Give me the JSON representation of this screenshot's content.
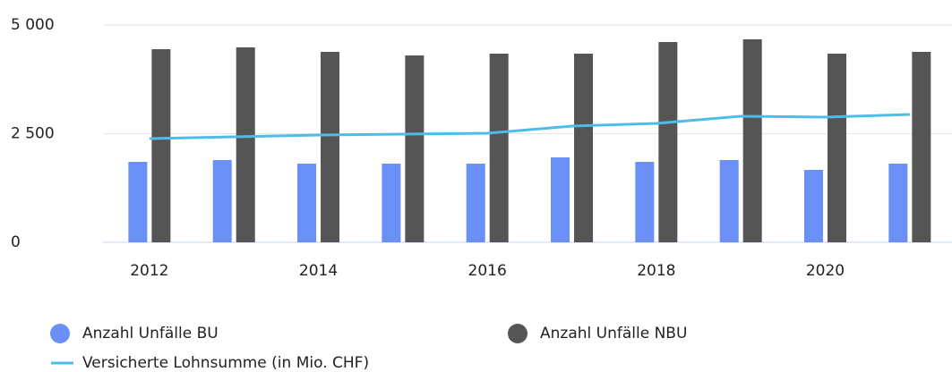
{
  "chart_data": {
    "type": "bar",
    "x": [
      2012,
      2013,
      2014,
      2015,
      2016,
      2017,
      2018,
      2019,
      2020,
      2021
    ],
    "xlim": [
      2011.45,
      2021.5
    ],
    "xticks": [
      2012,
      2014,
      2016,
      2018,
      2020
    ],
    "ylim": [
      0,
      5000
    ],
    "yticks": [
      0,
      {
        "value": 2500,
        "label": "2 500"
      },
      {
        "value": 5000,
        "label": "5 000"
      }
    ],
    "grid": true,
    "series": [
      {
        "name": "Anzahl Unfälle BU",
        "type": "bar",
        "color": "#6a8ff7",
        "values": [
          1852,
          1893,
          1811,
          1811,
          1811,
          1955,
          1852,
          1893,
          1667,
          1811
        ]
      },
      {
        "name": "Anzahl Unfälle NBU",
        "type": "bar",
        "color": "#555555",
        "values": [
          4444,
          4486,
          4383,
          4300,
          4342,
          4342,
          4609,
          4671,
          4342,
          4383
        ]
      },
      {
        "name": "Versicherte Lohnsumme (in Mio. CHF)",
        "type": "line",
        "color": "#4dbde8",
        "values": [
          2387,
          2428,
          2469,
          2490,
          2510,
          2675,
          2737,
          2901,
          2881,
          2942
        ]
      }
    ]
  }
}
